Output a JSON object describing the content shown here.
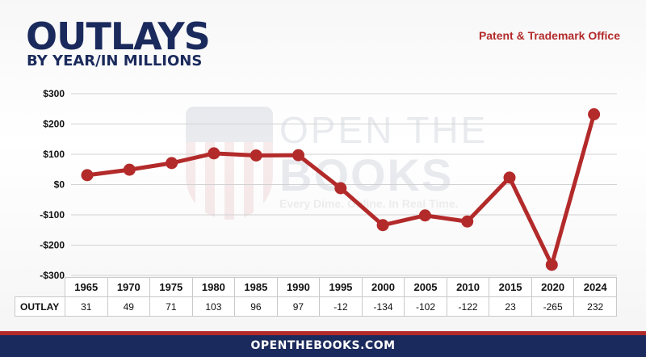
{
  "header": {
    "title": "OUTLAYS",
    "subtitle": "BY YEAR/IN MILLIONS",
    "agency": "Patent & Trademark Office"
  },
  "watermark": {
    "line1": "OPEN THE",
    "line2": "BOOKS",
    "tagline": "Every Dime. Online. In Real Time."
  },
  "chart_data": {
    "type": "line",
    "categories": [
      "1965",
      "1970",
      "1975",
      "1980",
      "1985",
      "1990",
      "1995",
      "2000",
      "2005",
      "2010",
      "2015",
      "2020",
      "2024"
    ],
    "series": [
      {
        "values": [
          31,
          49,
          71,
          103,
          96,
          97,
          -12,
          -134,
          -102,
          -122,
          23,
          -265,
          232
        ]
      }
    ],
    "y_ticks": [
      "$300",
      "$200",
      "$100",
      "$0",
      "-$100",
      "-$200",
      "-$300"
    ],
    "y_tick_values": [
      300,
      200,
      100,
      0,
      -100,
      -200,
      -300
    ],
    "ylim": [
      -300,
      300
    ],
    "grid": true,
    "legend": "none",
    "line_color": "#b32a2a"
  },
  "table": {
    "row_label": "OUTLAY",
    "values": [
      "31",
      "49",
      "71",
      "103",
      "96",
      "97",
      "-12",
      "-134",
      "-102",
      "-122",
      "23",
      "-265",
      "232"
    ]
  },
  "footer": {
    "site": "OPENTHEBOOKS.COM"
  },
  "colors": {
    "navy": "#1b2a5c",
    "red": "#b32a2a"
  }
}
